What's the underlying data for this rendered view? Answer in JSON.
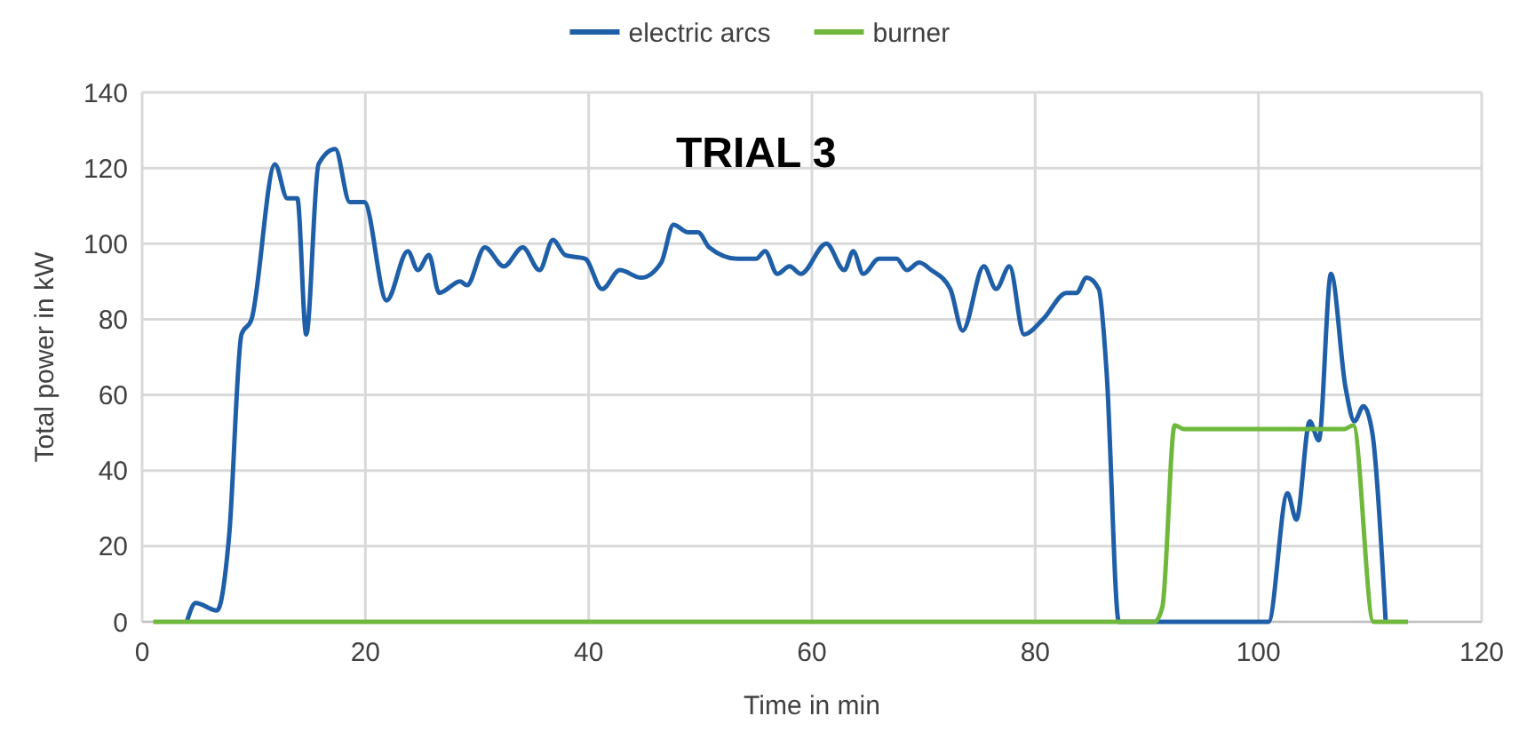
{
  "chart_data": {
    "type": "line",
    "title": "TRIAL 3",
    "xlabel": "Time in min",
    "ylabel": "Total power in kW",
    "xlim": [
      0,
      120
    ],
    "xticks": [
      0,
      20,
      40,
      60,
      80,
      100,
      120
    ],
    "ylim": [
      0,
      140
    ],
    "yticks": [
      0,
      20,
      40,
      60,
      80,
      100,
      120,
      140
    ],
    "grid": true,
    "legend": "top",
    "marker": "none",
    "line_style": "solid",
    "series": [
      {
        "name": "electric arcs",
        "color": "#1f5fa8",
        "x": [
          4.0,
          4.8,
          6.7,
          7.8,
          8.9,
          9.8,
          11.9,
          13.0,
          13.9,
          14.7,
          15.8,
          17.3,
          18.6,
          19.9,
          21.9,
          23.8,
          24.7,
          25.7,
          26.6,
          28.5,
          29.1,
          30.7,
          32.4,
          34.1,
          35.6,
          36.8,
          37.9,
          39.7,
          41.2,
          42.8,
          44.7,
          46.5,
          47.6,
          48.9,
          49.8,
          50.8,
          53.3,
          55.0,
          55.8,
          56.9,
          58.0,
          59.0,
          61.3,
          62.9,
          63.7,
          64.6,
          66.0,
          67.6,
          68.5,
          69.6,
          70.7,
          72.4,
          73.5,
          75.4,
          76.5,
          77.7,
          79.0,
          80.7,
          82.8,
          83.7,
          84.6,
          85.7,
          86.4,
          87.5,
          95.0,
          100.9,
          102.6,
          103.4,
          104.6,
          105.4,
          106.5,
          107.8,
          108.6,
          109.4,
          110.2,
          111.4
        ],
        "values": [
          0,
          5,
          3,
          23,
          76,
          80,
          121,
          112,
          112,
          76,
          121,
          125,
          111,
          111,
          85,
          98,
          93,
          97,
          87,
          90,
          89,
          99,
          94,
          99,
          93,
          101,
          97,
          96,
          88,
          93,
          91,
          95,
          105,
          103,
          103,
          99,
          96,
          96,
          98,
          92,
          94,
          92,
          100,
          93,
          98,
          92,
          96,
          96,
          93,
          95,
          93,
          88,
          77,
          94,
          88,
          94,
          76,
          80,
          87,
          87,
          91,
          88,
          66,
          0,
          0,
          0,
          34,
          27,
          53,
          48,
          92,
          62,
          53,
          57,
          50,
          0
        ]
      },
      {
        "name": "burner",
        "color": "#6fb83c",
        "x": [
          1.0,
          50.0,
          90.7,
          91.4,
          92.5,
          93.3,
          100.0,
          107.7,
          108.5,
          110.3,
          113.4
        ],
        "values": [
          0,
          0,
          0,
          4,
          52,
          51,
          51,
          51,
          52,
          0,
          0
        ]
      }
    ]
  }
}
